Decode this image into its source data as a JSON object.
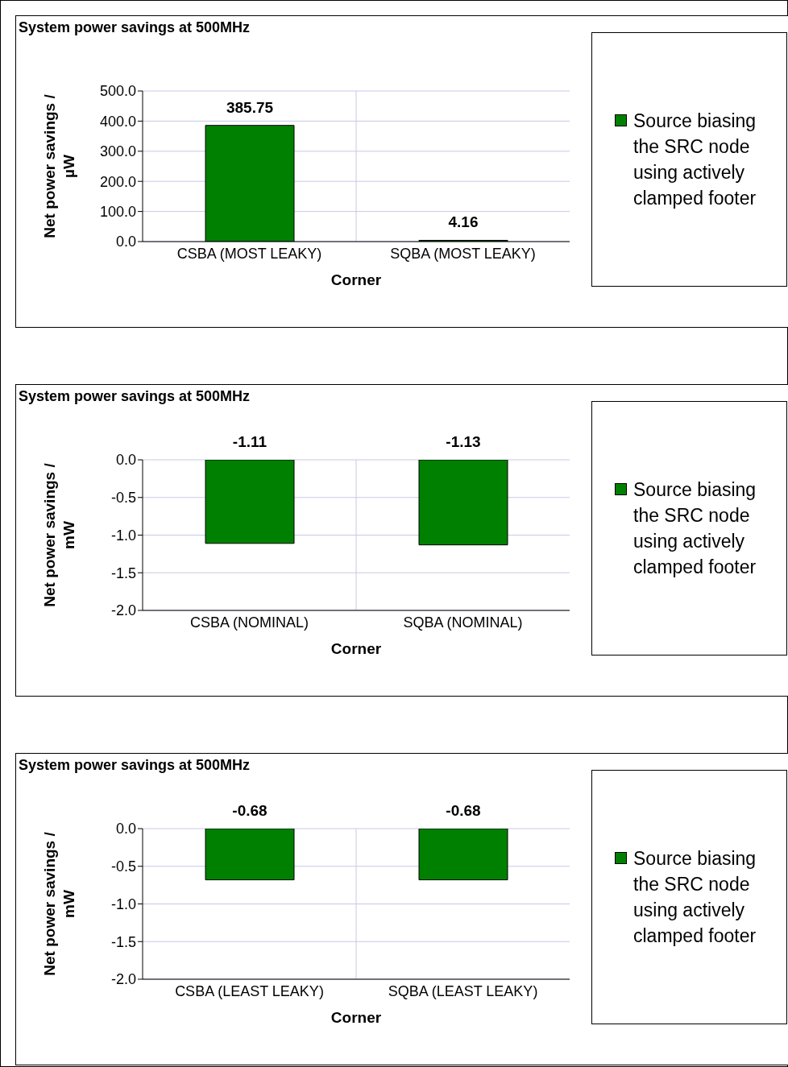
{
  "chart_data": [
    {
      "type": "bar",
      "title": "System power savings at 500MHz",
      "ylabel": "Net power savings / µW",
      "xlabel": "Corner",
      "categories": [
        "CSBA (MOST LEAKY)",
        "SQBA (MOST LEAKY)"
      ],
      "series": [
        {
          "name": "Source biasing the SRC node using actively clamped footer",
          "color": "#008000",
          "values": [
            385.75,
            4.16
          ]
        }
      ],
      "ylim": [
        0,
        500
      ],
      "yticks": [
        {
          "value": 0,
          "label": "0.0"
        },
        {
          "value": 100,
          "label": "100.0"
        },
        {
          "value": 200,
          "label": "200.0"
        },
        {
          "value": 300,
          "label": "300.0"
        },
        {
          "value": 400,
          "label": "400.0"
        },
        {
          "value": 500,
          "label": "500.0"
        }
      ],
      "data_labels": true,
      "grid": true,
      "legend": "right"
    },
    {
      "type": "bar",
      "title": "System power savings at 500MHz",
      "ylabel": "Net power savings / mW",
      "xlabel": "Corner",
      "categories": [
        "CSBA (NOMINAL)",
        "SQBA (NOMINAL)"
      ],
      "series": [
        {
          "name": "Source biasing the SRC node using actively clamped footer",
          "color": "#008000",
          "values": [
            -1.11,
            -1.13
          ]
        }
      ],
      "ylim": [
        -2,
        0
      ],
      "yticks": [
        {
          "value": -2,
          "label": "-2.0"
        },
        {
          "value": -1.5,
          "label": "-1.5"
        },
        {
          "value": -1,
          "label": "-1.0"
        },
        {
          "value": -0.5,
          "label": "-0.5"
        },
        {
          "value": 0,
          "label": "0.0"
        }
      ],
      "data_labels": true,
      "grid": true,
      "legend": "right"
    },
    {
      "type": "bar",
      "title": "System power savings at 500MHz",
      "ylabel": "Net power savings / mW",
      "xlabel": "Corner",
      "categories": [
        "CSBA (LEAST LEAKY)",
        "SQBA (LEAST LEAKY)"
      ],
      "series": [
        {
          "name": "Source biasing the SRC node using actively clamped footer",
          "color": "#008000",
          "values": [
            -0.68,
            -0.68
          ]
        }
      ],
      "ylim": [
        -2,
        0
      ],
      "yticks": [
        {
          "value": -2,
          "label": "-2.0"
        },
        {
          "value": -1.5,
          "label": "-1.5"
        },
        {
          "value": -1,
          "label": "-1.0"
        },
        {
          "value": -0.5,
          "label": "-0.5"
        },
        {
          "value": 0,
          "label": "0.0"
        }
      ],
      "data_labels": true,
      "grid": true,
      "legend": "right"
    }
  ]
}
